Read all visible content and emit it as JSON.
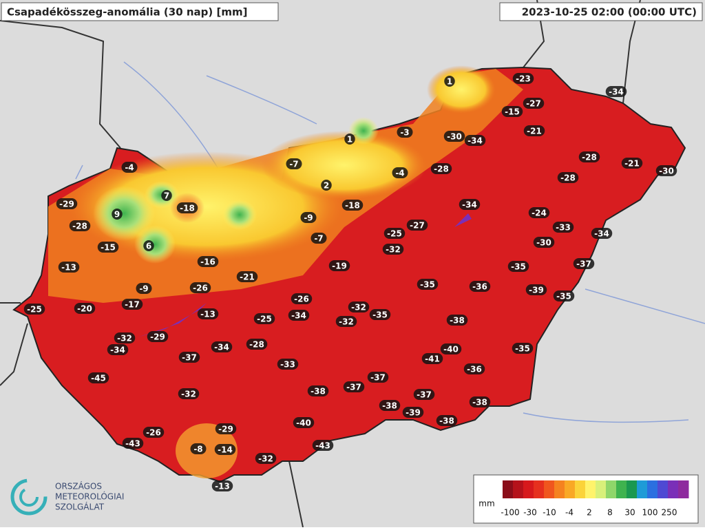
{
  "header": {
    "title": "Csapadékösszeg-anomália (30 nap) [mm]",
    "timestamp": "2023-10-25 02:00 (00:00 UTC)"
  },
  "stations": [
    -23,
    1,
    -27,
    -34,
    -15,
    -21,
    -3,
    -30,
    -34,
    1,
    -28,
    -21,
    -30,
    -4,
    -7,
    -28,
    -4,
    -28,
    2,
    7,
    -29,
    -18,
    -18,
    -34,
    9,
    -9,
    -24,
    -28,
    -27,
    -25,
    -33,
    -34,
    -7,
    6,
    -15,
    -32,
    -30,
    -16,
    -13,
    -19,
    -35,
    -37,
    -21,
    -9,
    -35,
    -36,
    -39,
    -26,
    -35,
    -26,
    -17,
    -25,
    -20,
    -32,
    -13,
    -34,
    -25,
    -35,
    -32,
    -38,
    -32,
    -29,
    -34,
    -28,
    -34,
    -40,
    -35,
    -37,
    -41,
    -33,
    -36,
    -45,
    -37,
    -37,
    -38,
    -32,
    -37,
    -38,
    -38,
    -39,
    -38,
    -40,
    -29,
    -26,
    -43,
    -43,
    -8,
    -14,
    -32,
    -13
  ],
  "legend": {
    "unit": "mm",
    "ticks": [
      -100,
      -30,
      -10,
      -4,
      2,
      8,
      30,
      100,
      250
    ],
    "colors": [
      "#8b0e1a",
      "#b5121b",
      "#d7191c",
      "#e6301e",
      "#f0561e",
      "#f5821f",
      "#f9a825",
      "#fbd33a",
      "#fff36b",
      "#d8f07a",
      "#8fd66a",
      "#3fb34f",
      "#1a9850",
      "#1e9bd7",
      "#2b6fe0",
      "#4f49d3",
      "#7a2fb8",
      "#8e2a9e"
    ]
  },
  "logo": {
    "lines": [
      "ORSZÁGOS",
      "METEOROLÓGIAI",
      "SZOLGÁLAT"
    ]
  }
}
